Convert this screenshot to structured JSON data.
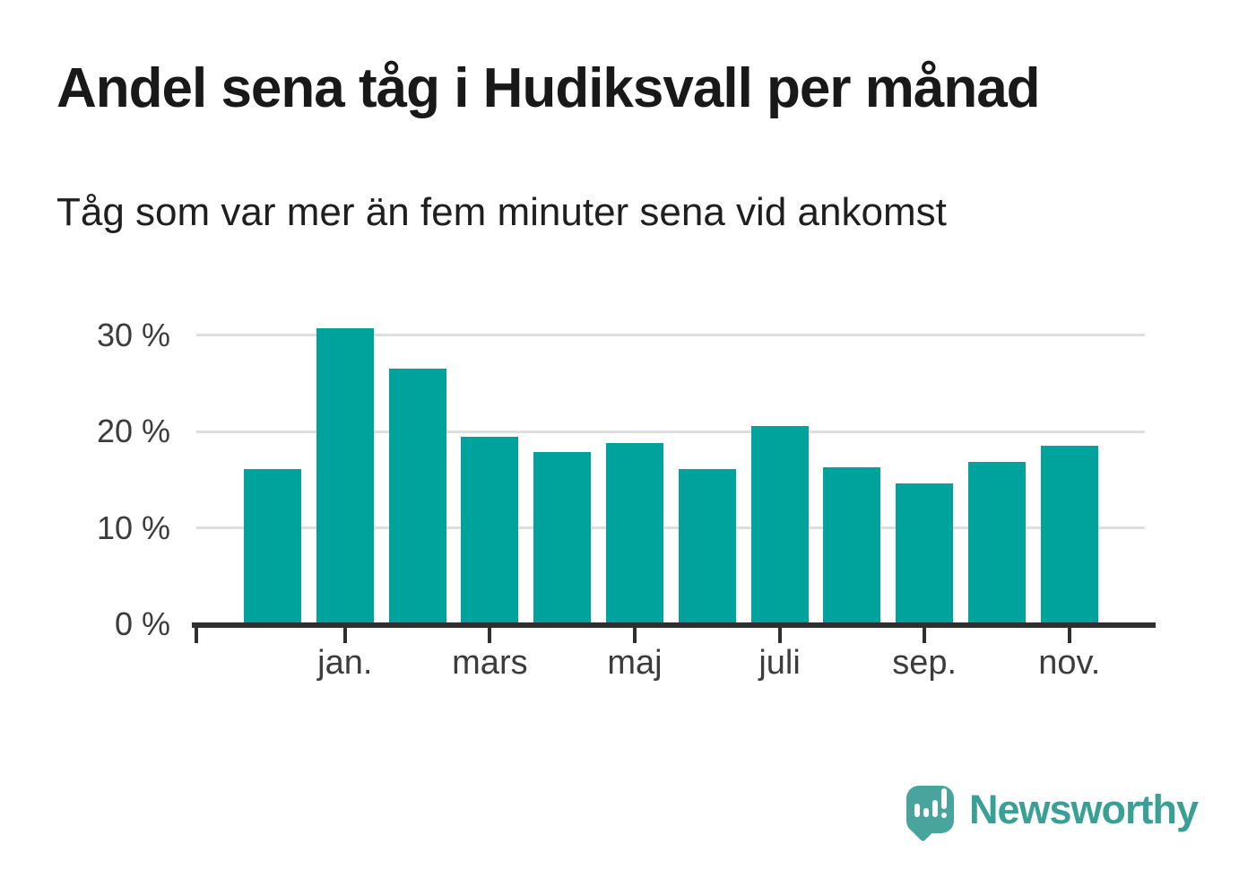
{
  "chart_data": {
    "type": "bar",
    "title": "Andel sena tåg i Hudiksvall per månad",
    "subtitle": "Tåg som var mer än fem minuter sena vid ankomst",
    "unit": "%",
    "bars": [
      {
        "label": "",
        "value": 16.1
      },
      {
        "label": "jan.",
        "value": 30.7
      },
      {
        "label": "",
        "value": 26.5
      },
      {
        "label": "mars",
        "value": 19.4
      },
      {
        "label": "",
        "value": 17.9
      },
      {
        "label": "maj",
        "value": 18.8
      },
      {
        "label": "",
        "value": 16.1
      },
      {
        "label": "juli",
        "value": 20.6
      },
      {
        "label": "",
        "value": 16.3
      },
      {
        "label": "sep.",
        "value": 14.6
      },
      {
        "label": "",
        "value": 16.8
      },
      {
        "label": "nov.",
        "value": 18.5
      }
    ],
    "y_axis": {
      "tick_labels": [
        {
          "text": "30 %",
          "value": 30
        },
        {
          "text": "20 %",
          "value": 20
        },
        {
          "text": "10 %",
          "value": 10
        },
        {
          "text": "0 %",
          "value": 0
        }
      ],
      "gridline_values": [
        10,
        20,
        30
      ],
      "range": [
        0,
        33.1
      ]
    },
    "x_axis": {
      "visible_tick_labels": [
        "jan.",
        "mars",
        "maj",
        "juli",
        "sep.",
        "nov."
      ]
    },
    "layout_hints": {
      "grid": "horizontal",
      "legend": "none"
    },
    "colors": {
      "bar": "#00a39b",
      "gridline": "#dedede",
      "axis": "#2f2f2f",
      "axis_text": "#3c3c3c",
      "title_text": "#191919"
    }
  },
  "footer": {
    "brand": "Newsworthy",
    "brand_color": "#3aa096",
    "logo_icon": "newsworthy-speech-bubble-bar-chart-icon"
  }
}
